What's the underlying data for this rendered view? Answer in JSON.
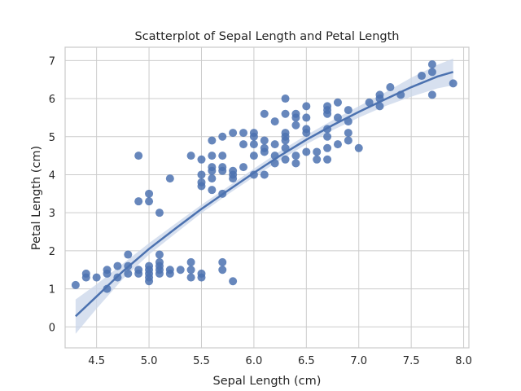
{
  "chart_data": {
    "type": "scatter",
    "title": "Scatterplot of Sepal Length and Petal Length",
    "xlabel": "Sepal Length (cm)",
    "ylabel": "Petal Length (cm)",
    "xlim": [
      4.2,
      8.05
    ],
    "ylim": [
      -0.55,
      7.35
    ],
    "xticks": [
      4.5,
      5.0,
      5.5,
      6.0,
      6.5,
      7.0,
      7.5,
      8.0
    ],
    "xtick_labels": [
      "4.5",
      "5.0",
      "5.5",
      "6.0",
      "6.5",
      "7.0",
      "7.5",
      "8.0"
    ],
    "yticks": [
      0,
      1,
      2,
      3,
      4,
      5,
      6,
      7
    ],
    "ytick_labels": [
      "0",
      "1",
      "2",
      "3",
      "4",
      "5",
      "6",
      "7"
    ],
    "grid": true,
    "point_color": "#4c72b0",
    "fit_color": "#4c72b0",
    "band_color": "#c9d6ea",
    "points": [
      [
        4.3,
        1.1
      ],
      [
        4.4,
        1.3
      ],
      [
        4.4,
        1.4
      ],
      [
        4.5,
        1.3
      ],
      [
        4.6,
        1.0
      ],
      [
        4.6,
        1.4
      ],
      [
        4.6,
        1.5
      ],
      [
        4.7,
        1.3
      ],
      [
        4.7,
        1.6
      ],
      [
        4.8,
        1.4
      ],
      [
        4.8,
        1.6
      ],
      [
        4.8,
        1.9
      ],
      [
        4.9,
        1.4
      ],
      [
        4.9,
        1.5
      ],
      [
        4.9,
        3.3
      ],
      [
        4.9,
        4.5
      ],
      [
        5.0,
        1.2
      ],
      [
        5.0,
        1.3
      ],
      [
        5.0,
        1.4
      ],
      [
        5.0,
        1.5
      ],
      [
        5.0,
        1.6
      ],
      [
        5.0,
        3.3
      ],
      [
        5.0,
        3.5
      ],
      [
        5.1,
        1.4
      ],
      [
        5.1,
        1.5
      ],
      [
        5.1,
        1.6
      ],
      [
        5.1,
        1.7
      ],
      [
        5.1,
        1.9
      ],
      [
        5.1,
        3.0
      ],
      [
        5.2,
        1.4
      ],
      [
        5.2,
        1.5
      ],
      [
        5.2,
        3.9
      ],
      [
        5.3,
        1.5
      ],
      [
        5.4,
        1.3
      ],
      [
        5.4,
        1.5
      ],
      [
        5.4,
        1.7
      ],
      [
        5.4,
        4.5
      ],
      [
        5.5,
        1.3
      ],
      [
        5.5,
        1.4
      ],
      [
        5.5,
        3.7
      ],
      [
        5.5,
        3.8
      ],
      [
        5.5,
        4.0
      ],
      [
        5.5,
        4.4
      ],
      [
        5.6,
        3.6
      ],
      [
        5.6,
        3.9
      ],
      [
        5.6,
        4.1
      ],
      [
        5.6,
        4.2
      ],
      [
        5.6,
        4.5
      ],
      [
        5.6,
        4.9
      ],
      [
        5.7,
        1.5
      ],
      [
        5.7,
        1.7
      ],
      [
        5.7,
        3.5
      ],
      [
        5.7,
        4.1
      ],
      [
        5.7,
        4.2
      ],
      [
        5.7,
        4.5
      ],
      [
        5.7,
        5.0
      ],
      [
        5.8,
        1.2
      ],
      [
        5.8,
        3.9
      ],
      [
        5.8,
        4.0
      ],
      [
        5.8,
        4.1
      ],
      [
        5.8,
        5.1
      ],
      [
        5.9,
        4.2
      ],
      [
        5.9,
        4.8
      ],
      [
        5.9,
        5.1
      ],
      [
        6.0,
        4.0
      ],
      [
        6.0,
        4.5
      ],
      [
        6.0,
        4.8
      ],
      [
        6.0,
        5.0
      ],
      [
        6.0,
        5.1
      ],
      [
        6.1,
        4.0
      ],
      [
        6.1,
        4.6
      ],
      [
        6.1,
        4.7
      ],
      [
        6.1,
        4.9
      ],
      [
        6.1,
        5.6
      ],
      [
        6.2,
        4.3
      ],
      [
        6.2,
        4.5
      ],
      [
        6.2,
        4.8
      ],
      [
        6.2,
        5.4
      ],
      [
        6.3,
        4.4
      ],
      [
        6.3,
        4.7
      ],
      [
        6.3,
        4.9
      ],
      [
        6.3,
        5.0
      ],
      [
        6.3,
        5.1
      ],
      [
        6.3,
        5.6
      ],
      [
        6.3,
        6.0
      ],
      [
        6.4,
        4.3
      ],
      [
        6.4,
        4.5
      ],
      [
        6.4,
        5.3
      ],
      [
        6.4,
        5.5
      ],
      [
        6.4,
        5.6
      ],
      [
        6.5,
        4.6
      ],
      [
        6.5,
        5.1
      ],
      [
        6.5,
        5.2
      ],
      [
        6.5,
        5.5
      ],
      [
        6.5,
        5.8
      ],
      [
        6.6,
        4.4
      ],
      [
        6.6,
        4.6
      ],
      [
        6.7,
        4.4
      ],
      [
        6.7,
        4.7
      ],
      [
        6.7,
        5.0
      ],
      [
        6.7,
        5.2
      ],
      [
        6.7,
        5.6
      ],
      [
        6.7,
        5.7
      ],
      [
        6.7,
        5.8
      ],
      [
        6.8,
        4.8
      ],
      [
        6.8,
        5.5
      ],
      [
        6.8,
        5.9
      ],
      [
        6.9,
        4.9
      ],
      [
        6.9,
        5.1
      ],
      [
        6.9,
        5.4
      ],
      [
        6.9,
        5.7
      ],
      [
        7.0,
        4.7
      ],
      [
        7.1,
        5.9
      ],
      [
        7.2,
        5.8
      ],
      [
        7.2,
        6.0
      ],
      [
        7.2,
        6.1
      ],
      [
        7.3,
        6.3
      ],
      [
        7.4,
        6.1
      ],
      [
        7.6,
        6.6
      ],
      [
        7.7,
        6.1
      ],
      [
        7.7,
        6.7
      ],
      [
        7.7,
        6.9
      ],
      [
        7.9,
        6.4
      ]
    ],
    "fit_curve": {
      "x": [
        4.3,
        4.5,
        4.75,
        5.0,
        5.25,
        5.5,
        5.75,
        6.0,
        6.25,
        6.5,
        6.75,
        7.0,
        7.25,
        7.5,
        7.75,
        7.9
      ],
      "y": [
        0.28,
        0.8,
        1.46,
        2.05,
        2.58,
        3.1,
        3.58,
        4.05,
        4.5,
        4.92,
        5.3,
        5.65,
        5.98,
        6.3,
        6.58,
        6.7
      ],
      "lower": [
        -0.18,
        0.48,
        1.26,
        1.9,
        2.45,
        2.99,
        3.48,
        3.94,
        4.38,
        4.8,
        5.17,
        5.5,
        5.8,
        6.05,
        6.27,
        6.35
      ],
      "upper": [
        0.72,
        1.12,
        1.66,
        2.2,
        2.71,
        3.21,
        3.68,
        4.16,
        4.62,
        5.04,
        5.43,
        5.8,
        6.16,
        6.55,
        6.89,
        7.05
      ]
    }
  }
}
